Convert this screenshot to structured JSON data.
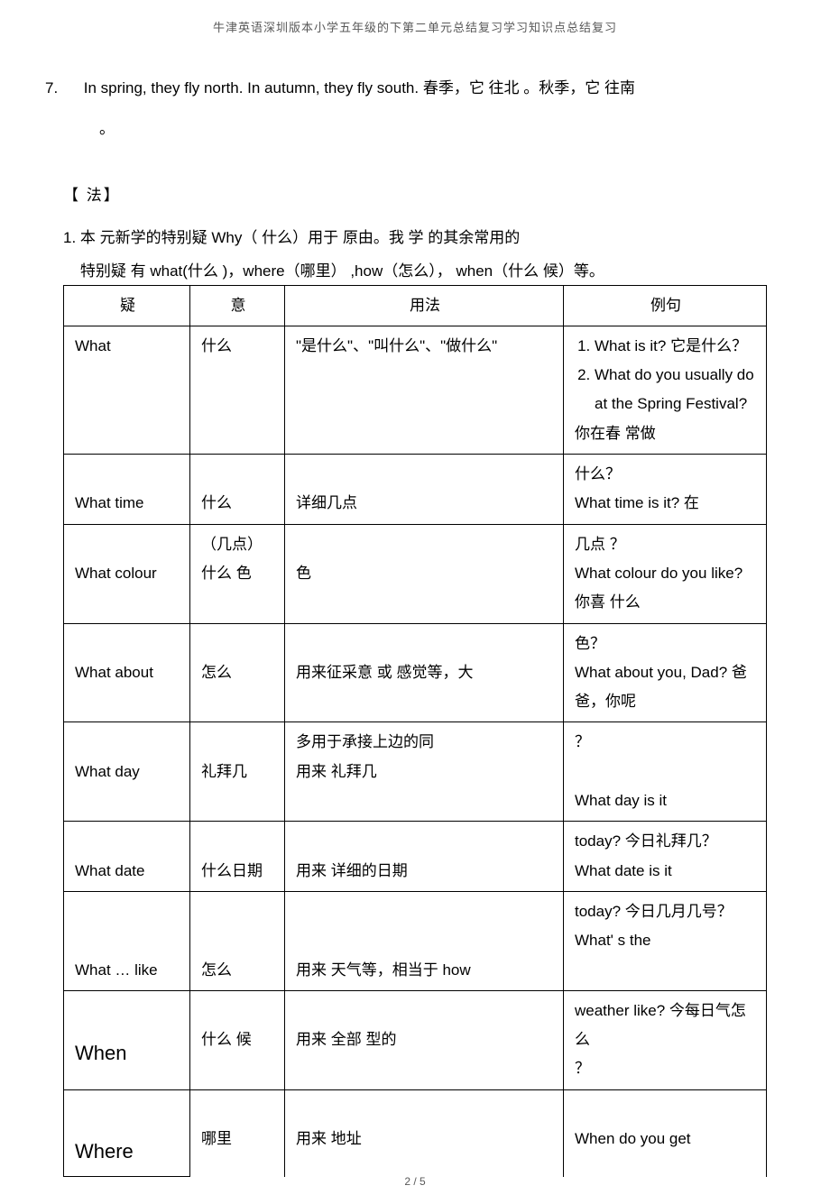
{
  "header": "牛津英语深圳版本小学五年级的下第二单元总结复习学习知识点总结复习",
  "footer": "2 / 5",
  "sentence7_num": "7.",
  "sentence7_text": "In spring, they fly north. In autumn, they fly south. 春季，它 往北 。秋季，它 往南",
  "sentence7_tail": "。",
  "section_title": "【 法】",
  "intro_num": "1.",
  "intro_line1": "本 元新学的特别疑   Why（ 什么）用于  原由。我 学 的其余常用的",
  "intro_line2": "特别疑   有  what(什么 )，where（哪里） ,how（怎么），  when（什么 候）等。",
  "table": {
    "headers": {
      "c1": "疑",
      "c2": "意",
      "c3": "用法",
      "c4": "例句"
    },
    "rows": [
      {
        "q": "What",
        "m": "什么",
        "u": "\"是什么\"、\"叫什么\"、\"做什么\"",
        "e": "<ol class='ex'><li>What is it? 它是什么？</li><li>What do you usually do at the Spring Festival?</li></ol>你在春   常做"
      },
      {
        "q": "What time",
        "m": "什么",
        "u": "详细几点",
        "e_pre": "什么？",
        "e": "What time is it?  在"
      },
      {
        "q": "What colour",
        "m_pre": "（几点）",
        "m": "什么 色",
        "u": " 色",
        "e_pre": "几点 ？",
        "e": "What colour do you like? 你喜 什么"
      },
      {
        "q": "What about",
        "m": "怎么",
        "u": "用来征采意 或  感觉等，大",
        "e_pre": " 色？",
        "e": "What about you, Dad? 爸爸，你呢"
      },
      {
        "q": "What day",
        "m": "礼拜几",
        "u_pre": "多用于承接上边的同",
        "u": "用来 礼拜几",
        "e_pre": "？",
        "e": "What day is it"
      },
      {
        "q": "What date",
        "m": "什么日期",
        "u": "用来 详细的日期",
        "e_pre": "today? 今日礼拜几？",
        "e": "What date is it"
      },
      {
        "q": "What … like",
        "m": "怎么",
        "u": "用来 天气等，相当于 how",
        "e_pre": "today? 今日几月几号？",
        "e": "What' s the"
      },
      {
        "q": "When",
        "m": "什么 候",
        "u": "用来  全部 型的",
        "e_pre": "weather like? 今每日气怎么",
        "e": " ？"
      },
      {
        "q": "Where",
        "m": "哪里",
        "u": "用来 地址",
        "e": "When do you get"
      }
    ]
  }
}
